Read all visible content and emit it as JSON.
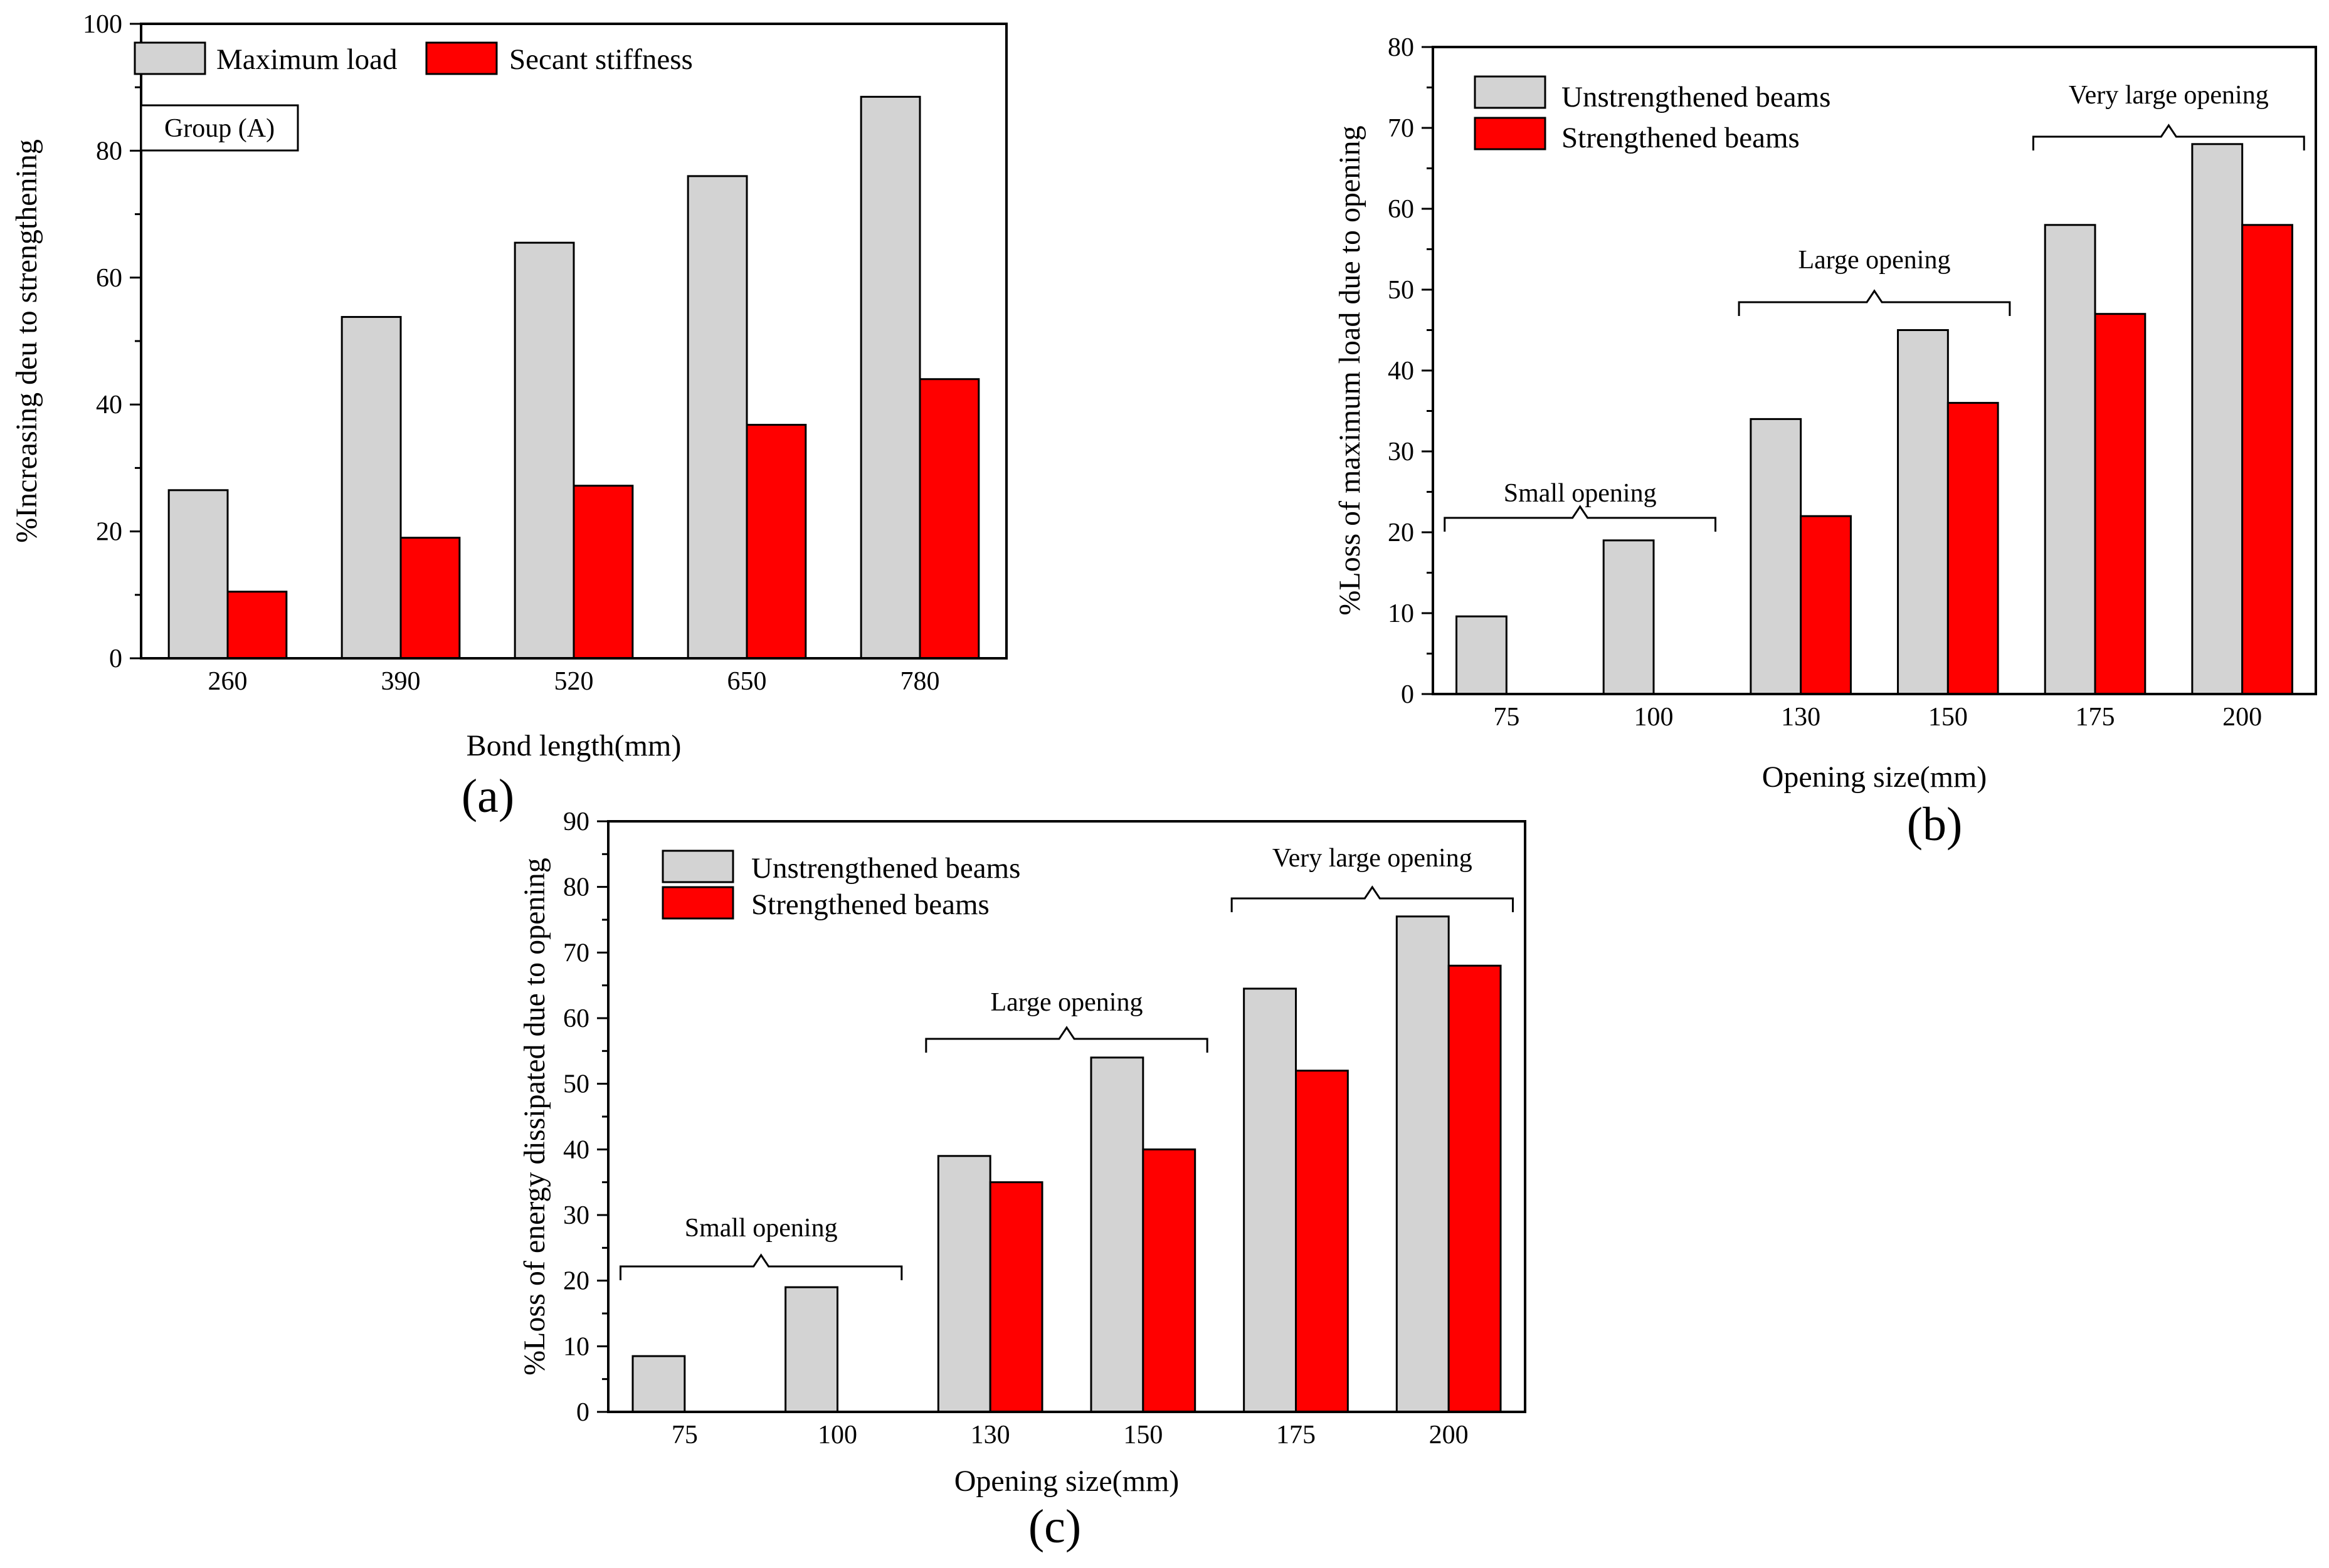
{
  "chart_data": [
    {
      "id": "a",
      "type": "bar",
      "panel_label": "(a)",
      "xlabel": "Bond length(mm)",
      "ylabel": "%Increasing deu to strengthening",
      "ylim": [
        0,
        100
      ],
      "yticks": [
        0,
        20,
        40,
        60,
        80,
        100
      ],
      "grid": false,
      "legend_position": "top-left",
      "categories": [
        "260",
        "390",
        "520",
        "650",
        "780"
      ],
      "series": [
        {
          "name": "Maximum load",
          "color": "#d3d3d3",
          "values": [
            26.5,
            53.8,
            65.5,
            76.0,
            88.5
          ]
        },
        {
          "name": "Secant stiffness",
          "color": "#ff0000",
          "values": [
            10.5,
            19.0,
            27.2,
            36.8,
            44.0
          ]
        }
      ],
      "annotations": [
        {
          "text": "Group (A)"
        }
      ]
    },
    {
      "id": "b",
      "type": "bar",
      "panel_label": "(b)",
      "xlabel": "Opening size(mm)",
      "ylabel": "%Loss of maximum load due to opening",
      "ylim": [
        0,
        80
      ],
      "yticks": [
        0,
        10,
        20,
        30,
        40,
        50,
        60,
        70,
        80
      ],
      "grid": false,
      "legend_position": "top-left",
      "categories": [
        "75",
        "100",
        "130",
        "150",
        "175",
        "200"
      ],
      "series": [
        {
          "name": "Unstrengthened beams",
          "color": "#d3d3d3",
          "values": [
            9.6,
            19.0,
            34.0,
            45.0,
            58.0,
            68.0
          ]
        },
        {
          "name": "Strengthened beams",
          "color": "#ff0000",
          "values": [
            null,
            null,
            22.0,
            36.0,
            47.0,
            58.0
          ]
        }
      ],
      "annotations": [
        {
          "text": "Small opening",
          "categories": [
            "75",
            "100"
          ]
        },
        {
          "text": "Large opening",
          "categories": [
            "130",
            "150"
          ]
        },
        {
          "text": "Very large opening",
          "categories": [
            "175",
            "200"
          ]
        }
      ]
    },
    {
      "id": "c",
      "type": "bar",
      "panel_label": "(c)",
      "xlabel": "Opening size(mm)",
      "ylabel": "%Loss of energy dissipated due to opening",
      "ylim": [
        0,
        90
      ],
      "yticks": [
        0,
        10,
        20,
        30,
        40,
        50,
        60,
        70,
        80,
        90
      ],
      "grid": false,
      "legend_position": "top-left",
      "categories": [
        "75",
        "100",
        "130",
        "150",
        "175",
        "200"
      ],
      "series": [
        {
          "name": "Unstrengthened beams",
          "color": "#d3d3d3",
          "values": [
            8.5,
            19.0,
            39.0,
            54.0,
            64.5,
            75.5
          ]
        },
        {
          "name": "Strengthened beams",
          "color": "#ff0000",
          "values": [
            null,
            null,
            35.0,
            40.0,
            52.0,
            68.0
          ]
        }
      ],
      "annotations": [
        {
          "text": "Small opening",
          "categories": [
            "75",
            "100"
          ]
        },
        {
          "text": "Large opening",
          "categories": [
            "130",
            "150"
          ]
        },
        {
          "text": "Very large opening",
          "categories": [
            "175",
            "200"
          ]
        }
      ]
    }
  ]
}
